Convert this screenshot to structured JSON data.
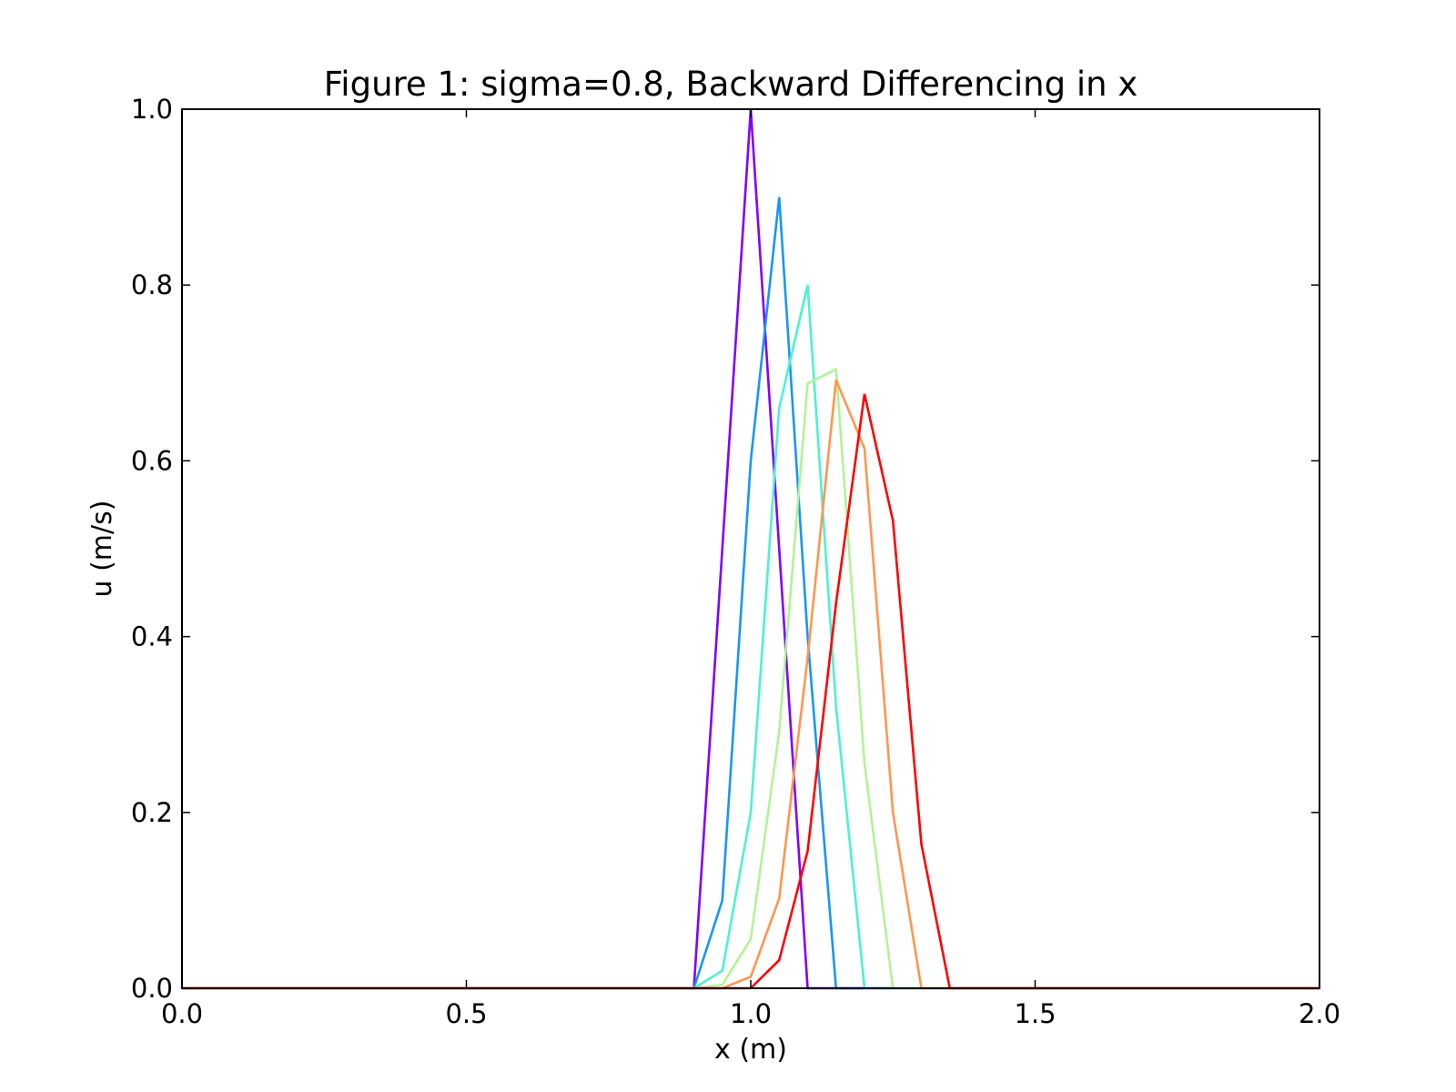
{
  "chart_data": {
    "type": "line",
    "title": "Figure 1: sigma=0.8, Backward Differencing in x",
    "xlabel": "x (m)",
    "ylabel": "u (m/s)",
    "xlim": [
      0.0,
      2.0
    ],
    "ylim": [
      0.0,
      1.0
    ],
    "x_ticks": [
      "0.0",
      "0.5",
      "1.0",
      "1.5",
      "2.0"
    ],
    "y_ticks": [
      "0.0",
      "0.2",
      "0.4",
      "0.6",
      "0.8",
      "1.0"
    ],
    "x_tick_values": [
      0.0,
      0.5,
      1.0,
      1.5,
      2.0
    ],
    "y_tick_values": [
      0.0,
      0.2,
      0.4,
      0.6,
      0.8,
      1.0
    ],
    "grid": false,
    "legend": "none",
    "series": [
      {
        "color": "#8000ff",
        "points": [
          [
            0.0,
            0.0
          ],
          [
            0.9,
            0.0
          ],
          [
            1.0,
            1.0
          ],
          [
            1.1,
            0.0
          ],
          [
            2.0,
            0.0
          ]
        ]
      },
      {
        "color": "#1996f3",
        "points": [
          [
            0.0,
            0.0
          ],
          [
            0.9,
            0.0
          ],
          [
            0.95,
            0.1
          ],
          [
            1.0,
            0.6
          ],
          [
            1.05,
            0.9
          ],
          [
            1.1,
            0.4
          ],
          [
            1.15,
            0.0
          ],
          [
            2.0,
            0.0
          ]
        ]
      },
      {
        "color": "#4cf2ce",
        "points": [
          [
            0.0,
            0.0
          ],
          [
            0.9,
            0.0
          ],
          [
            0.95,
            0.02
          ],
          [
            1.0,
            0.2
          ],
          [
            1.05,
            0.66
          ],
          [
            1.1,
            0.8
          ],
          [
            1.15,
            0.32
          ],
          [
            1.2,
            0.0
          ],
          [
            2.0,
            0.0
          ]
        ]
      },
      {
        "color": "#b2f396",
        "points": [
          [
            0.0,
            0.0
          ],
          [
            0.9,
            0.0
          ],
          [
            0.95,
            0.004
          ],
          [
            1.0,
            0.056
          ],
          [
            1.05,
            0.292
          ],
          [
            1.1,
            0.688
          ],
          [
            1.15,
            0.704
          ],
          [
            1.2,
            0.256
          ],
          [
            1.25,
            0.0
          ],
          [
            2.0,
            0.0
          ]
        ]
      },
      {
        "color": "#ff964f",
        "points": [
          [
            0.0,
            0.0
          ],
          [
            0.95,
            0.0
          ],
          [
            1.0,
            0.013
          ],
          [
            1.05,
            0.102
          ],
          [
            1.1,
            0.376
          ],
          [
            1.15,
            0.692
          ],
          [
            1.2,
            0.614
          ],
          [
            1.25,
            0.2
          ],
          [
            1.3,
            0.0
          ],
          [
            2.0,
            0.0
          ]
        ]
      },
      {
        "color": "#ff0000",
        "points": [
          [
            0.0,
            0.0
          ],
          [
            1.0,
            0.0
          ],
          [
            1.05,
            0.032
          ],
          [
            1.1,
            0.156
          ],
          [
            1.15,
            0.438
          ],
          [
            1.2,
            0.676
          ],
          [
            1.25,
            0.532
          ],
          [
            1.3,
            0.164
          ],
          [
            1.35,
            0.0
          ],
          [
            2.0,
            0.0
          ]
        ]
      }
    ]
  }
}
